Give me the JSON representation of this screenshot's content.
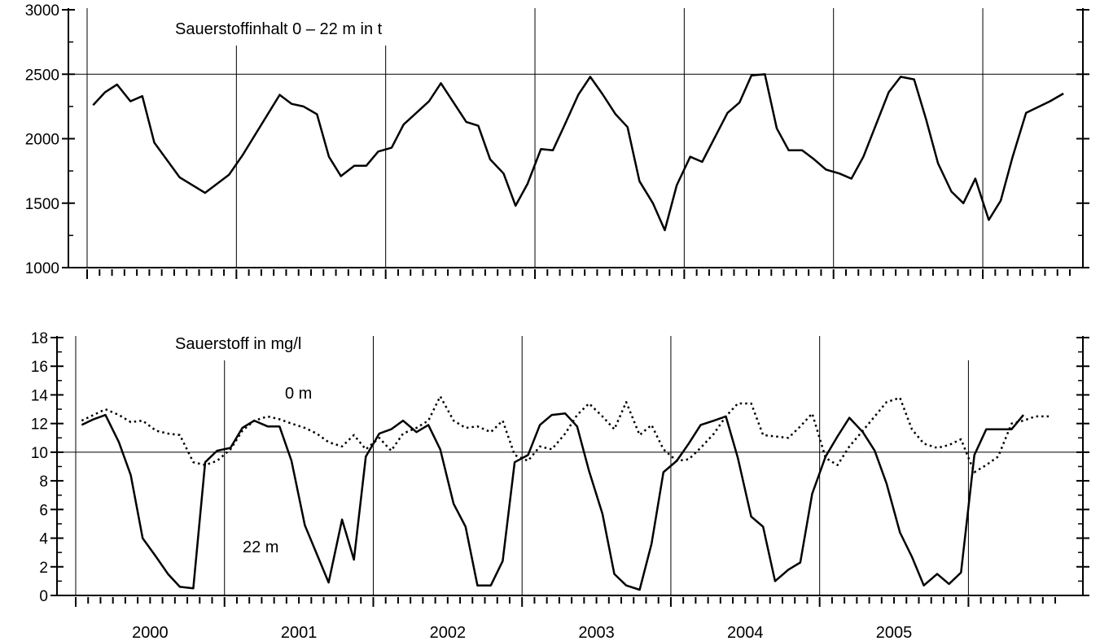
{
  "chart_data": [
    {
      "type": "line",
      "title": "Sauerstoffinhalt 0 – 22 m in t",
      "xlabel": "",
      "ylabel": "",
      "ylim": [
        1000,
        3000
      ],
      "yticks": [
        1000,
        1500,
        2000,
        2500,
        3000
      ],
      "reference_line": 2500,
      "grid": "vertical year separators",
      "series": [
        {
          "style": "solid",
          "points": [
            [
              2000.04,
              2260
            ],
            [
              2000.12,
              2360
            ],
            [
              2000.2,
              2420
            ],
            [
              2000.29,
              2290
            ],
            [
              2000.37,
              2330
            ],
            [
              2000.45,
              1970
            ],
            [
              2000.62,
              1700
            ],
            [
              2000.79,
              1580
            ],
            [
              2000.95,
              1720
            ],
            [
              2001.04,
              1870
            ],
            [
              2001.29,
              2340
            ],
            [
              2001.37,
              2270
            ],
            [
              2001.45,
              2250
            ],
            [
              2001.54,
              2190
            ],
            [
              2001.62,
              1860
            ],
            [
              2001.7,
              1710
            ],
            [
              2001.79,
              1790
            ],
            [
              2001.87,
              1790
            ],
            [
              2001.95,
              1900
            ],
            [
              2002.04,
              1930
            ],
            [
              2002.12,
              2110
            ],
            [
              2002.29,
              2290
            ],
            [
              2002.37,
              2430
            ],
            [
              2002.54,
              2130
            ],
            [
              2002.62,
              2100
            ],
            [
              2002.7,
              1840
            ],
            [
              2002.79,
              1730
            ],
            [
              2002.87,
              1480
            ],
            [
              2002.95,
              1650
            ],
            [
              2003.04,
              1920
            ],
            [
              2003.12,
              1910
            ],
            [
              2003.2,
              2110
            ],
            [
              2003.29,
              2340
            ],
            [
              2003.37,
              2480
            ],
            [
              2003.45,
              2350
            ],
            [
              2003.54,
              2190
            ],
            [
              2003.62,
              2090
            ],
            [
              2003.7,
              1670
            ],
            [
              2003.79,
              1500
            ],
            [
              2003.87,
              1290
            ],
            [
              2003.95,
              1640
            ],
            [
              2004.04,
              1860
            ],
            [
              2004.12,
              1820
            ],
            [
              2004.29,
              2200
            ],
            [
              2004.37,
              2280
            ],
            [
              2004.45,
              2490
            ],
            [
              2004.54,
              2500
            ],
            [
              2004.62,
              2080
            ],
            [
              2004.7,
              1910
            ],
            [
              2004.79,
              1910
            ],
            [
              2004.87,
              1840
            ],
            [
              2004.95,
              1760
            ],
            [
              2005.04,
              1730
            ],
            [
              2005.12,
              1690
            ],
            [
              2005.2,
              1860
            ],
            [
              2005.37,
              2360
            ],
            [
              2005.45,
              2480
            ],
            [
              2005.54,
              2460
            ],
            [
              2005.62,
              2150
            ],
            [
              2005.7,
              1810
            ],
            [
              2005.79,
              1590
            ],
            [
              2005.87,
              1500
            ],
            [
              2005.95,
              1690
            ],
            [
              2006.04,
              1370
            ],
            [
              2006.12,
              1520
            ],
            [
              2006.2,
              1860
            ],
            [
              2006.29,
              2200
            ],
            [
              2006.45,
              2290
            ],
            [
              2006.54,
              2350
            ]
          ]
        }
      ]
    },
    {
      "type": "line",
      "title": "Sauerstoff in mg/l",
      "xlabel": "",
      "ylabel": "",
      "ylim": [
        0,
        18
      ],
      "yticks": [
        0,
        2,
        4,
        6,
        8,
        10,
        12,
        14,
        16,
        18
      ],
      "reference_line": 10,
      "categories": [
        "2000",
        "2001",
        "2002",
        "2003",
        "2004",
        "2005"
      ],
      "grid": "vertical year separators",
      "series": [
        {
          "name": "0 m",
          "style": "dotted",
          "points": [
            [
              2000.04,
              12.2
            ],
            [
              2000.12,
              12.6
            ],
            [
              2000.2,
              13.0
            ],
            [
              2000.29,
              12.6
            ],
            [
              2000.37,
              12.1
            ],
            [
              2000.45,
              12.2
            ],
            [
              2000.54,
              11.5
            ],
            [
              2000.62,
              11.3
            ],
            [
              2000.7,
              11.2
            ],
            [
              2000.79,
              9.3
            ],
            [
              2000.87,
              9.1
            ],
            [
              2000.95,
              9.4
            ],
            [
              2001.04,
              10.2
            ],
            [
              2001.12,
              11.5
            ],
            [
              2001.2,
              12.2
            ],
            [
              2001.29,
              12.5
            ],
            [
              2001.37,
              12.3
            ],
            [
              2001.45,
              12.0
            ],
            [
              2001.54,
              11.7
            ],
            [
              2001.62,
              11.3
            ],
            [
              2001.7,
              10.7
            ],
            [
              2001.79,
              10.4
            ],
            [
              2001.87,
              11.2
            ],
            [
              2001.95,
              10.2
            ],
            [
              2002.04,
              11.0
            ],
            [
              2002.12,
              10.1
            ],
            [
              2002.2,
              11.3
            ],
            [
              2002.29,
              11.7
            ],
            [
              2002.37,
              12.2
            ],
            [
              2002.45,
              13.9
            ],
            [
              2002.54,
              12.2
            ],
            [
              2002.62,
              11.7
            ],
            [
              2002.7,
              11.8
            ],
            [
              2002.79,
              11.4
            ],
            [
              2002.87,
              12.2
            ],
            [
              2002.95,
              9.8
            ],
            [
              2003.04,
              9.4
            ],
            [
              2003.12,
              10.4
            ],
            [
              2003.2,
              10.2
            ],
            [
              2003.29,
              11.3
            ],
            [
              2003.37,
              12.6
            ],
            [
              2003.45,
              13.4
            ],
            [
              2003.54,
              12.5
            ],
            [
              2003.62,
              11.6
            ],
            [
              2003.7,
              13.5
            ],
            [
              2003.79,
              11.2
            ],
            [
              2003.87,
              11.9
            ],
            [
              2003.95,
              10.2
            ],
            [
              2004.04,
              9.4
            ],
            [
              2004.12,
              9.5
            ],
            [
              2004.2,
              10.3
            ],
            [
              2004.29,
              11.3
            ],
            [
              2004.37,
              12.5
            ],
            [
              2004.45,
              13.4
            ],
            [
              2004.54,
              13.4
            ],
            [
              2004.62,
              11.2
            ],
            [
              2004.7,
              11.1
            ],
            [
              2004.79,
              11.0
            ],
            [
              2004.87,
              11.8
            ],
            [
              2004.95,
              12.7
            ],
            [
              2005.04,
              9.6
            ],
            [
              2005.12,
              9.1
            ],
            [
              2005.2,
              10.4
            ],
            [
              2005.29,
              11.5
            ],
            [
              2005.37,
              12.5
            ],
            [
              2005.45,
              13.5
            ],
            [
              2005.54,
              13.8
            ],
            [
              2005.62,
              11.6
            ],
            [
              2005.7,
              10.6
            ],
            [
              2005.79,
              10.3
            ],
            [
              2005.87,
              10.5
            ],
            [
              2005.95,
              10.9
            ],
            [
              2006.04,
              8.6
            ],
            [
              2006.12,
              9.1
            ],
            [
              2006.2,
              9.7
            ],
            [
              2006.29,
              12.0
            ],
            [
              2006.37,
              12.2
            ],
            [
              2006.45,
              12.5
            ],
            [
              2006.54,
              12.5
            ]
          ]
        },
        {
          "name": "22 m",
          "style": "solid",
          "points": [
            [
              2000.04,
              11.9
            ],
            [
              2000.12,
              12.3
            ],
            [
              2000.2,
              12.6
            ],
            [
              2000.29,
              10.7
            ],
            [
              2000.37,
              8.4
            ],
            [
              2000.45,
              4.0
            ],
            [
              2000.54,
              2.7
            ],
            [
              2000.62,
              1.5
            ],
            [
              2000.7,
              0.6
            ],
            [
              2000.79,
              0.5
            ],
            [
              2000.87,
              9.3
            ],
            [
              2000.95,
              10.1
            ],
            [
              2001.04,
              10.3
            ],
            [
              2001.12,
              11.7
            ],
            [
              2001.2,
              12.2
            ],
            [
              2001.29,
              11.8
            ],
            [
              2001.37,
              11.8
            ],
            [
              2001.45,
              9.4
            ],
            [
              2001.54,
              4.9
            ],
            [
              2001.62,
              2.9
            ],
            [
              2001.7,
              0.9
            ],
            [
              2001.79,
              5.3
            ],
            [
              2001.87,
              2.5
            ],
            [
              2001.95,
              9.7
            ],
            [
              2002.04,
              11.3
            ],
            [
              2002.12,
              11.6
            ],
            [
              2002.2,
              12.2
            ],
            [
              2002.29,
              11.4
            ],
            [
              2002.37,
              11.9
            ],
            [
              2002.45,
              10.2
            ],
            [
              2002.54,
              6.4
            ],
            [
              2002.62,
              4.8
            ],
            [
              2002.7,
              0.7
            ],
            [
              2002.79,
              0.7
            ],
            [
              2002.87,
              2.4
            ],
            [
              2002.95,
              9.3
            ],
            [
              2003.04,
              9.8
            ],
            [
              2003.12,
              11.9
            ],
            [
              2003.2,
              12.6
            ],
            [
              2003.29,
              12.7
            ],
            [
              2003.37,
              11.8
            ],
            [
              2003.45,
              8.7
            ],
            [
              2003.54,
              5.7
            ],
            [
              2003.62,
              1.5
            ],
            [
              2003.7,
              0.7
            ],
            [
              2003.79,
              0.4
            ],
            [
              2003.87,
              3.6
            ],
            [
              2003.95,
              8.6
            ],
            [
              2004.04,
              9.4
            ],
            [
              2004.12,
              10.6
            ],
            [
              2004.2,
              11.9
            ],
            [
              2004.29,
              12.2
            ],
            [
              2004.37,
              12.5
            ],
            [
              2004.45,
              9.6
            ],
            [
              2004.54,
              5.5
            ],
            [
              2004.62,
              4.8
            ],
            [
              2004.7,
              1.0
            ],
            [
              2004.79,
              1.8
            ],
            [
              2004.87,
              2.3
            ],
            [
              2004.95,
              7.1
            ],
            [
              2005.04,
              9.7
            ],
            [
              2005.12,
              11.1
            ],
            [
              2005.2,
              12.4
            ],
            [
              2005.29,
              11.4
            ],
            [
              2005.37,
              10.1
            ],
            [
              2005.45,
              7.8
            ],
            [
              2005.54,
              4.4
            ],
            [
              2005.62,
              2.7
            ],
            [
              2005.7,
              0.7
            ],
            [
              2005.79,
              1.5
            ],
            [
              2005.87,
              0.8
            ],
            [
              2005.95,
              1.6
            ],
            [
              2006.04,
              9.8
            ],
            [
              2006.12,
              11.6
            ],
            [
              2006.2,
              11.6
            ],
            [
              2006.29,
              11.6
            ],
            [
              2006.37,
              12.6
            ]
          ]
        }
      ]
    }
  ]
}
